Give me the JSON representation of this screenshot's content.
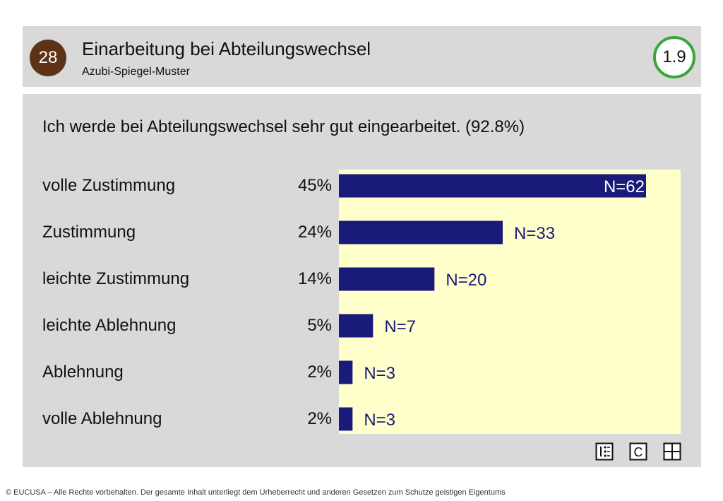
{
  "header": {
    "slide_number": "28",
    "title": "Einarbeitung bei Abteilungswechsel",
    "subtitle": "Azubi-Spiegel-Muster",
    "score": "1.9"
  },
  "question": "Ich werde bei Abteilungswechsel sehr gut eingearbeitet. (92.8%)",
  "rows": [
    {
      "label": "volle Zustimmung",
      "percent": "45%"
    },
    {
      "label": "Zustimmung",
      "percent": "24%"
    },
    {
      "label": "leichte Zustimmung",
      "percent": "14%"
    },
    {
      "label": "leichte Ablehnung",
      "percent": "5%"
    },
    {
      "label": "Ablehnung",
      "percent": "2%"
    },
    {
      "label": "volle Ablehnung",
      "percent": "2%"
    }
  ],
  "chart_data": {
    "type": "bar",
    "orientation": "horizontal",
    "categories": [
      "volle Zustimmung",
      "Zustimmung",
      "leichte Zustimmung",
      "leichte Ablehnung",
      "Ablehnung",
      "volle Ablehnung"
    ],
    "values": [
      45,
      24,
      14,
      5,
      2,
      2
    ],
    "data_labels": [
      "N=62",
      "N=33",
      "N=20",
      "N=7",
      "N=3",
      "N=3"
    ],
    "xlim": [
      0,
      50
    ],
    "bar_color": "#1a1a7a",
    "background_color": "#ffffcc"
  },
  "toolbar": {
    "icons": [
      "list-icon",
      "c-icon",
      "grid-icon"
    ],
    "c_label": "C"
  },
  "footer": "© EUCUSA – Alle Rechte vorbehalten. Der gesamte Inhalt unterliegt dem Urheberrecht und anderen Gesetzen zum Schutze geistigen Eigentums"
}
